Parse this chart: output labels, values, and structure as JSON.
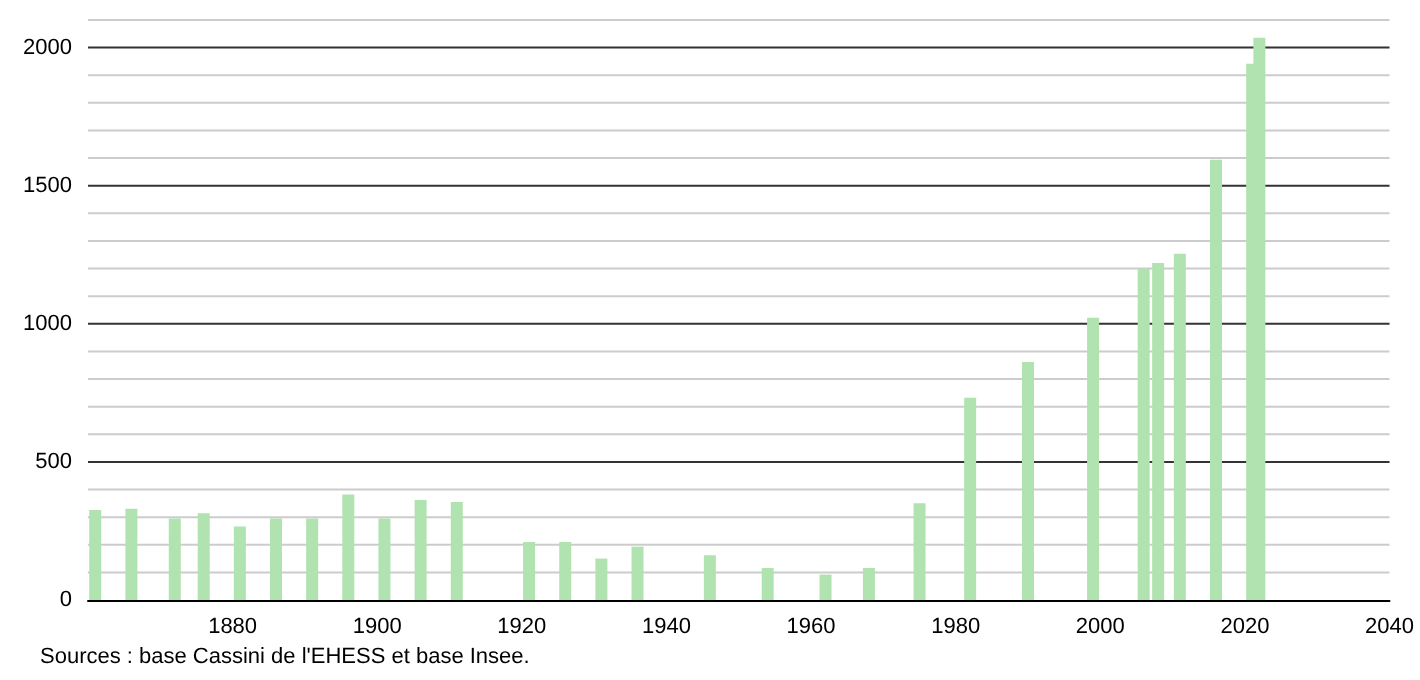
{
  "chart_data": {
    "type": "bar",
    "x": [
      1861,
      1866,
      1872,
      1876,
      1881,
      1886,
      1891,
      1896,
      1901,
      1906,
      1911,
      1921,
      1926,
      1931,
      1936,
      1946,
      1954,
      1962,
      1968,
      1975,
      1982,
      1990,
      1999,
      2006,
      2008,
      2011,
      2016,
      2021,
      2022
    ],
    "values": [
      326,
      330,
      295,
      314,
      266,
      295,
      295,
      382,
      295,
      362,
      355,
      210,
      210,
      150,
      193,
      162,
      116,
      92,
      116,
      350,
      732,
      862,
      1022,
      1200,
      1220,
      1254,
      1594,
      1942,
      2036
    ],
    "color": "#b0e3b0",
    "xlim": [
      1860,
      2040
    ],
    "xticks": [
      1880,
      1900,
      1920,
      1940,
      1960,
      1980,
      2000,
      2020,
      2040
    ],
    "ylim": [
      0,
      2100
    ],
    "yticks": [
      0,
      500,
      1000,
      1500,
      2000
    ],
    "grid": "y",
    "annotations": [
      "Sources : base Cassini de l'EHESS et base Insee."
    ]
  }
}
